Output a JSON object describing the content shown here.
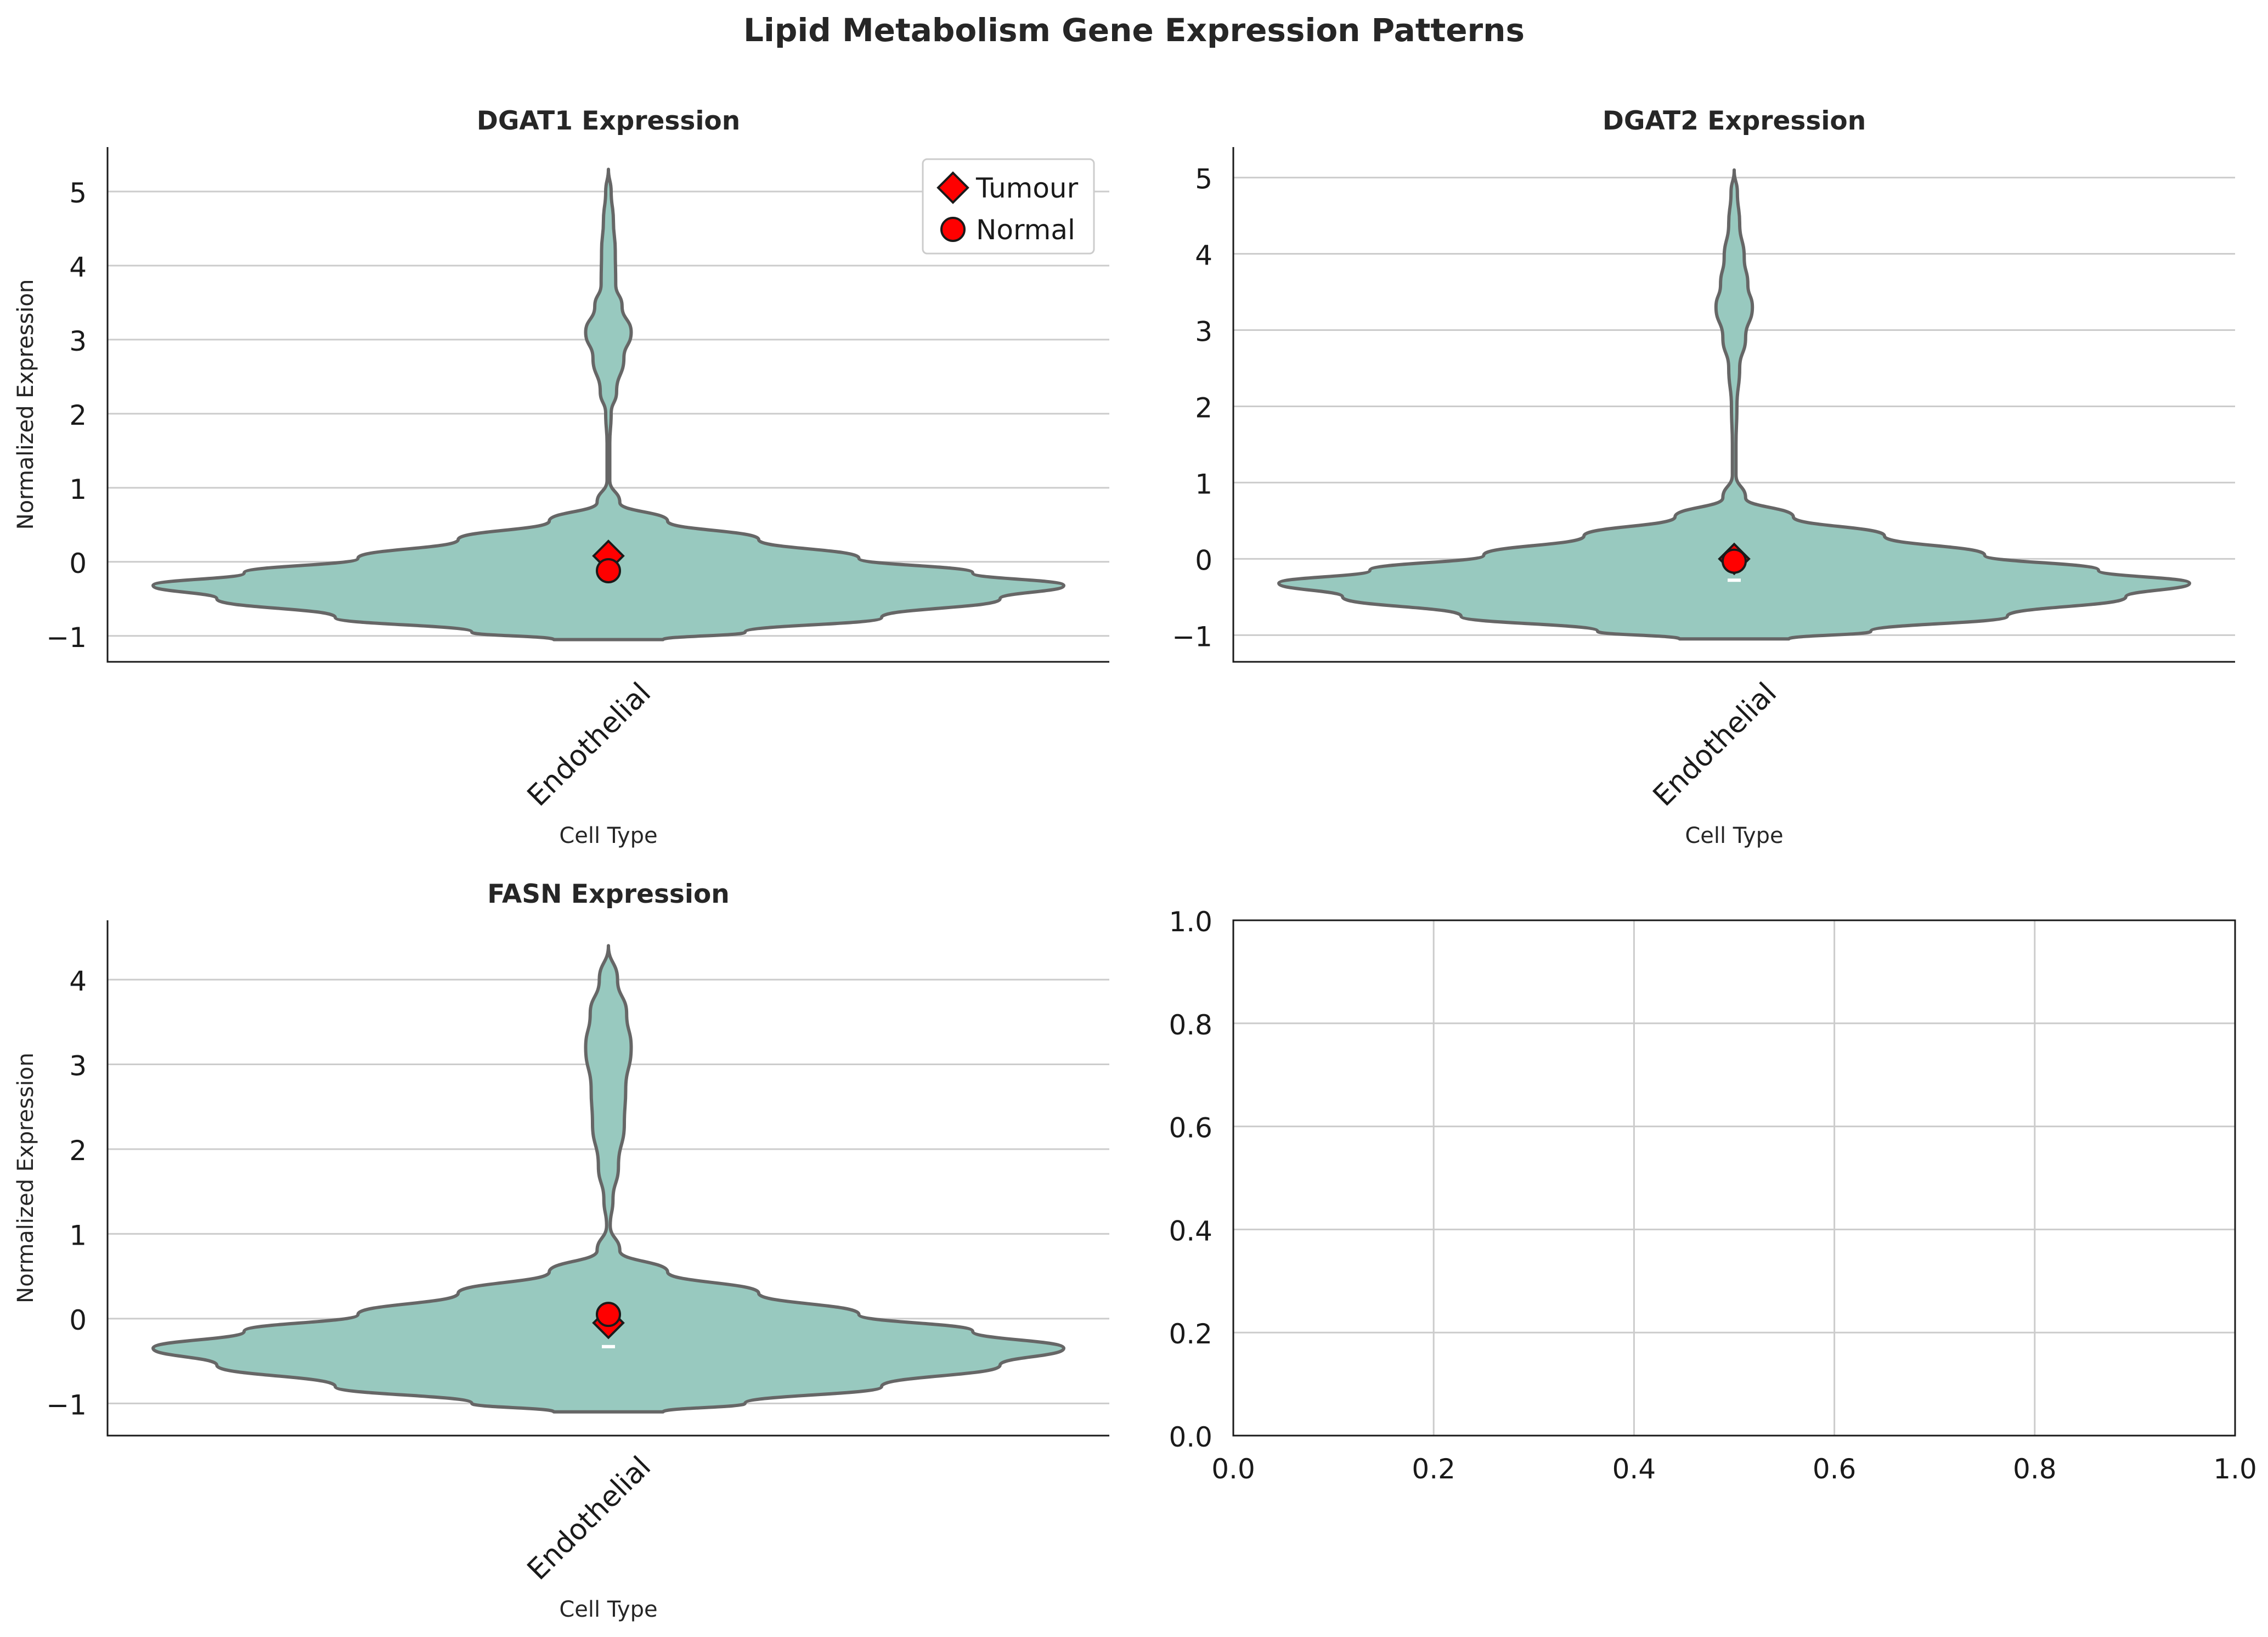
{
  "title": "Lipid Metabolism Gene Expression Patterns",
  "colors": {
    "violin_fill": "#98c9bf",
    "violin_edge": "#666666",
    "marker_fill": "#ff0000",
    "marker_edge": "#1a1a1a",
    "median_line": "#ffffff",
    "grid": "#cccccc"
  },
  "legend": {
    "placement": "top-right",
    "entries": [
      {
        "label": "Tumour",
        "marker": "diamond"
      },
      {
        "label": "Normal",
        "marker": "circle"
      }
    ]
  },
  "chart_data": [
    {
      "type": "violin",
      "title": "DGAT1 Expression",
      "xlabel": "Cell Type",
      "ylabel": "Normalized Expression",
      "categories": [
        "Endothelial"
      ],
      "ylim": [
        -1.35,
        5.6
      ],
      "yticks": [
        -1,
        0,
        1,
        2,
        3,
        4,
        5
      ],
      "ytick_labels": [
        "−1",
        "0",
        "1",
        "2",
        "3",
        "4",
        "5"
      ],
      "grid": "horizontal",
      "violin_range": [
        -1.05,
        5.3
      ],
      "density": [
        [
          -1.05,
          0.12
        ],
        [
          -0.95,
          0.3
        ],
        [
          -0.75,
          0.6
        ],
        [
          -0.5,
          0.86
        ],
        [
          -0.32,
          1.0
        ],
        [
          -0.15,
          0.8
        ],
        [
          0.05,
          0.55
        ],
        [
          0.3,
          0.33
        ],
        [
          0.55,
          0.13
        ],
        [
          0.8,
          0.025
        ],
        [
          1.1,
          0.003
        ],
        [
          1.6,
          0.003
        ],
        [
          2.0,
          0.006
        ],
        [
          2.3,
          0.018
        ],
        [
          2.75,
          0.034
        ],
        [
          3.1,
          0.05
        ],
        [
          3.45,
          0.03
        ],
        [
          3.75,
          0.016
        ],
        [
          4.2,
          0.015
        ],
        [
          4.6,
          0.011
        ],
        [
          5.0,
          0.006
        ],
        [
          5.3,
          0.0
        ]
      ],
      "median": -0.2,
      "points": [
        {
          "group": "Tumour",
          "value": 0.08
        },
        {
          "group": "Normal",
          "value": -0.12
        }
      ],
      "show_legend": true
    },
    {
      "type": "violin",
      "title": "DGAT2 Expression",
      "xlabel": "Cell Type",
      "ylabel": "Normalized Expression",
      "categories": [
        "Endothelial"
      ],
      "ylim": [
        -1.35,
        5.4
      ],
      "yticks": [
        -1,
        0,
        1,
        2,
        3,
        4,
        5
      ],
      "ytick_labels": [
        "−1",
        "0",
        "1",
        "2",
        "3",
        "4",
        "5"
      ],
      "grid": "horizontal",
      "violin_range": [
        -1.05,
        5.1
      ],
      "density": [
        [
          -1.05,
          0.12
        ],
        [
          -0.95,
          0.3
        ],
        [
          -0.75,
          0.6
        ],
        [
          -0.5,
          0.86
        ],
        [
          -0.32,
          1.0
        ],
        [
          -0.15,
          0.8
        ],
        [
          0.05,
          0.55
        ],
        [
          0.3,
          0.33
        ],
        [
          0.55,
          0.13
        ],
        [
          0.8,
          0.025
        ],
        [
          1.1,
          0.004
        ],
        [
          1.5,
          0.004
        ],
        [
          2.0,
          0.006
        ],
        [
          2.5,
          0.012
        ],
        [
          2.9,
          0.025
        ],
        [
          3.3,
          0.04
        ],
        [
          3.6,
          0.03
        ],
        [
          3.95,
          0.022
        ],
        [
          4.4,
          0.012
        ],
        [
          4.8,
          0.007
        ],
        [
          5.1,
          0.0
        ]
      ],
      "median": -0.28,
      "points": [
        {
          "group": "Tumour",
          "value": 0.0
        },
        {
          "group": "Normal",
          "value": -0.03
        }
      ],
      "show_legend": false
    },
    {
      "type": "violin",
      "title": "FASN Expression",
      "xlabel": "Cell Type",
      "ylabel": "Normalized Expression",
      "categories": [
        "Endothelial"
      ],
      "ylim": [
        -1.38,
        4.7
      ],
      "yticks": [
        -1,
        0,
        1,
        2,
        3,
        4
      ],
      "ytick_labels": [
        "−1",
        "0",
        "1",
        "2",
        "3",
        "4"
      ],
      "grid": "horizontal",
      "violin_range": [
        -1.1,
        4.4
      ],
      "density": [
        [
          -1.1,
          0.12
        ],
        [
          -1.0,
          0.3
        ],
        [
          -0.8,
          0.6
        ],
        [
          -0.55,
          0.86
        ],
        [
          -0.35,
          1.0
        ],
        [
          -0.15,
          0.8
        ],
        [
          0.05,
          0.55
        ],
        [
          0.3,
          0.33
        ],
        [
          0.55,
          0.13
        ],
        [
          0.8,
          0.025
        ],
        [
          1.1,
          0.004
        ],
        [
          1.4,
          0.01
        ],
        [
          1.8,
          0.022
        ],
        [
          2.3,
          0.035
        ],
        [
          2.7,
          0.038
        ],
        [
          3.2,
          0.05
        ],
        [
          3.6,
          0.04
        ],
        [
          4.0,
          0.02
        ],
        [
          4.4,
          0.0
        ]
      ],
      "median": -0.33,
      "points": [
        {
          "group": "Tumour",
          "value": -0.05
        },
        {
          "group": "Normal",
          "value": 0.05
        }
      ],
      "show_legend": false
    },
    {
      "type": "empty",
      "xlim": [
        0,
        1
      ],
      "ylim": [
        0,
        1
      ],
      "xticks": [
        0.0,
        0.2,
        0.4,
        0.6,
        0.8,
        1.0
      ],
      "xtick_labels": [
        "0.0",
        "0.2",
        "0.4",
        "0.6",
        "0.8",
        "1.0"
      ],
      "yticks": [
        0.0,
        0.2,
        0.4,
        0.6,
        0.8,
        1.0
      ],
      "ytick_labels": [
        "0.0",
        "0.2",
        "0.4",
        "0.6",
        "0.8",
        "1.0"
      ],
      "grid": "both"
    }
  ]
}
